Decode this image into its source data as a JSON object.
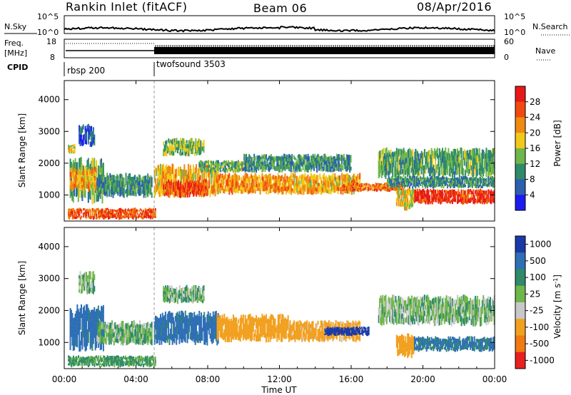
{
  "header": {
    "station": "Rankin Inlet (fitACF)",
    "beam": "Beam 06",
    "date": "08/Apr/2016"
  },
  "noise_panel": {
    "left_label": "N.Sky",
    "right_label": "N.Search",
    "left_ticks": [
      "10^5",
      "10^0"
    ],
    "right_ticks": [
      "10^5",
      "10^0"
    ]
  },
  "freq_panel": {
    "left_label_1": "Freq.",
    "left_label_2": "[MHz]",
    "right_label": "Nave",
    "left_ticks": [
      "18",
      "8"
    ],
    "right_ticks": [
      "60",
      "0"
    ],
    "cpid_label": "CPID",
    "programs": [
      {
        "name": "rbsp 200",
        "start_hour": 0
      },
      {
        "name": "twofsound 3503",
        "start_hour": 5
      }
    ],
    "freq_line_mhz": 10.5,
    "nave_line_dotted": 45,
    "nave_line_solid": 12
  },
  "x_axis": {
    "label": "Time UT",
    "range_hours": [
      0,
      24
    ],
    "ticks": [
      "00:00",
      "04:00",
      "08:00",
      "12:00",
      "16:00",
      "20:00",
      "00:00"
    ]
  },
  "power_panel": {
    "ylabel": "Slant Range [km]",
    "yticks": [
      "1000",
      "2000",
      "3000",
      "4000"
    ],
    "colorbar_label": "Power [dB]",
    "colorbar_ticks": [
      "4",
      "8",
      "12",
      "16",
      "20",
      "24",
      "28"
    ],
    "colors": [
      "#1c1cf0",
      "#2c5fb0",
      "#2f8a6a",
      "#6fb74a",
      "#f2c81a",
      "#f08a10",
      "#f04a10",
      "#e81818"
    ]
  },
  "velocity_panel": {
    "ylabel": "Slant Range [km]",
    "yticks": [
      "1000",
      "2000",
      "3000",
      "4000"
    ],
    "colorbar_label": "Velocity [m s^-1]",
    "colorbar_ticks": [
      "1000",
      "500",
      "100",
      "25",
      "-25",
      "-100",
      "-500",
      "-1000"
    ],
    "colors": [
      "#1a3aa8",
      "#2f6fb5",
      "#2f8a6a",
      "#6fb74a",
      "#c8c8c8",
      "#f2a020",
      "#f07a10",
      "#e82020"
    ]
  },
  "chart_data": [
    {
      "type": "heatmap",
      "title": "Power",
      "x_range_hours": [
        0,
        24
      ],
      "ylim_km": [
        180,
        4600
      ],
      "clim_db": [
        0,
        32
      ],
      "blobs": [
        {
          "t0": 0.2,
          "t1": 5.1,
          "r0": 220,
          "r1": 600,
          "v": 26
        },
        {
          "t0": 0.3,
          "t1": 2.2,
          "r0": 700,
          "r1": 2200,
          "v": 12
        },
        {
          "t0": 0.3,
          "t1": 1.8,
          "r0": 1100,
          "r1": 1900,
          "v": 20
        },
        {
          "t0": 0.8,
          "t1": 1.7,
          "r0": 2500,
          "r1": 3250,
          "v": 6
        },
        {
          "t0": 0.2,
          "t1": 0.6,
          "r0": 2300,
          "r1": 2600,
          "v": 18
        },
        {
          "t0": 1.8,
          "t1": 4.9,
          "r0": 900,
          "r1": 1700,
          "v": 10
        },
        {
          "t0": 5.0,
          "t1": 8.6,
          "r0": 900,
          "r1": 2000,
          "v": 20
        },
        {
          "t0": 5.5,
          "t1": 8.0,
          "r0": 900,
          "r1": 1500,
          "v": 26
        },
        {
          "t0": 5.5,
          "t1": 7.8,
          "r0": 2200,
          "r1": 2800,
          "v": 14
        },
        {
          "t0": 7.5,
          "t1": 10.5,
          "r0": 1700,
          "r1": 2100,
          "v": 12
        },
        {
          "t0": 8.5,
          "t1": 12.5,
          "r0": 1000,
          "r1": 1700,
          "v": 22
        },
        {
          "t0": 12.5,
          "t1": 16.5,
          "r0": 1000,
          "r1": 1700,
          "v": 20
        },
        {
          "t0": 10.0,
          "t1": 16.0,
          "r0": 1700,
          "r1": 2300,
          "v": 10
        },
        {
          "t0": 15.5,
          "t1": 19.0,
          "r0": 1100,
          "r1": 1400,
          "v": 24
        },
        {
          "t0": 18.5,
          "t1": 19.5,
          "r0": 500,
          "r1": 1300,
          "v": 18
        },
        {
          "t0": 17.5,
          "t1": 24.0,
          "r0": 1500,
          "r1": 2500,
          "v": 12
        },
        {
          "t0": 19.5,
          "t1": 24.0,
          "r0": 700,
          "r1": 1200,
          "v": 28
        },
        {
          "t0": 18.0,
          "t1": 24.0,
          "r0": 1200,
          "r1": 1600,
          "v": 10
        }
      ]
    },
    {
      "type": "heatmap",
      "title": "Velocity",
      "x_range_hours": [
        0,
        24
      ],
      "ylim_km": [
        180,
        4600
      ],
      "clim_ms": [
        -1000,
        1000
      ],
      "blobs": [
        {
          "t0": 0.2,
          "t1": 5.1,
          "r0": 220,
          "r1": 600,
          "v": 40
        },
        {
          "t0": 0.3,
          "t1": 2.2,
          "r0": 700,
          "r1": 2200,
          "v": 150
        },
        {
          "t0": 1.8,
          "t1": 4.9,
          "r0": 900,
          "r1": 1700,
          "v": 10
        },
        {
          "t0": 0.8,
          "t1": 1.7,
          "r0": 2500,
          "r1": 3250,
          "v": 0
        },
        {
          "t0": 5.0,
          "t1": 8.6,
          "r0": 900,
          "r1": 2000,
          "v": 150
        },
        {
          "t0": 5.5,
          "t1": 7.8,
          "r0": 2200,
          "r1": 2800,
          "v": 0
        },
        {
          "t0": 8.5,
          "t1": 12.5,
          "r0": 1000,
          "r1": 1900,
          "v": -200
        },
        {
          "t0": 12.5,
          "t1": 16.5,
          "r0": 1000,
          "r1": 1700,
          "v": -150
        },
        {
          "t0": 14.5,
          "t1": 17.0,
          "r0": 1200,
          "r1": 1500,
          "v": 700
        },
        {
          "t0": 18.5,
          "t1": 19.5,
          "r0": 500,
          "r1": 1300,
          "v": -300
        },
        {
          "t0": 17.5,
          "t1": 24.0,
          "r0": 1500,
          "r1": 2500,
          "v": 0
        },
        {
          "t0": 19.5,
          "t1": 24.0,
          "r0": 700,
          "r1": 1200,
          "v": 120
        }
      ]
    }
  ]
}
